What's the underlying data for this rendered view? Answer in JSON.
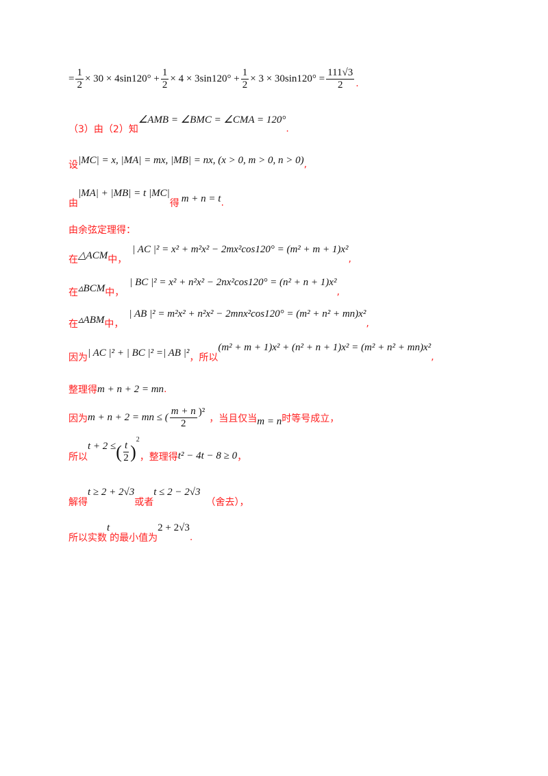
{
  "line1": {
    "eq": "=",
    "f1n": "1",
    "f1d": "2",
    "t1": "× 30 × 4sin120° +",
    "f2n": "1",
    "f2d": "2",
    "t2": "× 4 × 3sin120° +",
    "f3n": "1",
    "f3d": "2",
    "t3": "× 3 × 30sin120° =",
    "f4n": "111√3",
    "f4d": "2",
    "end": "."
  },
  "line2": {
    "cn": "（3）由（2）知",
    "math": "∠AMB = ∠BMC = ∠CMA = 120°",
    "end": "."
  },
  "line3": {
    "cn": "设",
    "math": "|MC| = x, |MA| = mx, |MB| = nx, (x > 0, m > 0, n > 0)",
    "end": ","
  },
  "line4": {
    "cn": "由",
    "math": "|MA| + |MB| = t |MC|",
    "cn2": "得",
    "math2": "m + n = t",
    "end": "."
  },
  "line5": {
    "cn": "由余弦定理得："
  },
  "line6": {
    "cn": "在",
    "tri": "△ACM",
    "cn2": "中，",
    "math": "| AC |² = x² + m²x² − 2mx²cos120° = (m² + m + 1)x²",
    "end": ","
  },
  "line7": {
    "cn": "在",
    "tri": "▵BCM",
    "cn2": "中，",
    "math": "| BC |² = x² + n²x² − 2nx²cos120° = (n² + n + 1)x²",
    "end": ","
  },
  "line8": {
    "cn": "在",
    "tri": "▵ABM",
    "cn2": "中，",
    "math": "| AB |² = m²x² + n²x² − 2mnx²cos120° = (m² + n² + mn)x²",
    "end": ","
  },
  "line9": {
    "cn": "因为",
    "math": "| AC |² + | BC |² =| AB |²",
    "cn2": "，所以",
    "math2": "(m² + m + 1)x² + (n² + n + 1)x² = (m² + n² + mn)x²",
    "end": ","
  },
  "line10": {
    "cn": "整理得",
    "math": "m + n + 2 = mn",
    "end": "."
  },
  "line11": {
    "cn": "因为",
    "math": "m + n + 2 = mn ≤ (",
    "fn": "m + n",
    "fd": "2",
    "sup": ")²",
    "cn2": "，当且仅当",
    "math2": "m = n",
    "cn3": "时等号成立，"
  },
  "line12": {
    "cn": "所以",
    "math": "t + 2 ≤",
    "fn": "t",
    "fd": "2",
    "sup": "2",
    "cn2": "，整理得",
    "math2": "t² − 4t − 8 ≥ 0",
    "end": "，"
  },
  "line13": {
    "cn": "解得",
    "math": "t ≥ 2 + 2√3",
    "cn2": "或者",
    "math2": "t ≤ 2 − 2√3",
    "cn3": "（舍去），"
  },
  "line14": {
    "cn": "所以实数",
    "math": "t",
    "cn2": "的最小值为",
    "math2": "2 + 2√3",
    "end": "."
  },
  "colors": {
    "chinese_text": "#ff2020",
    "math_text": "#111111"
  }
}
